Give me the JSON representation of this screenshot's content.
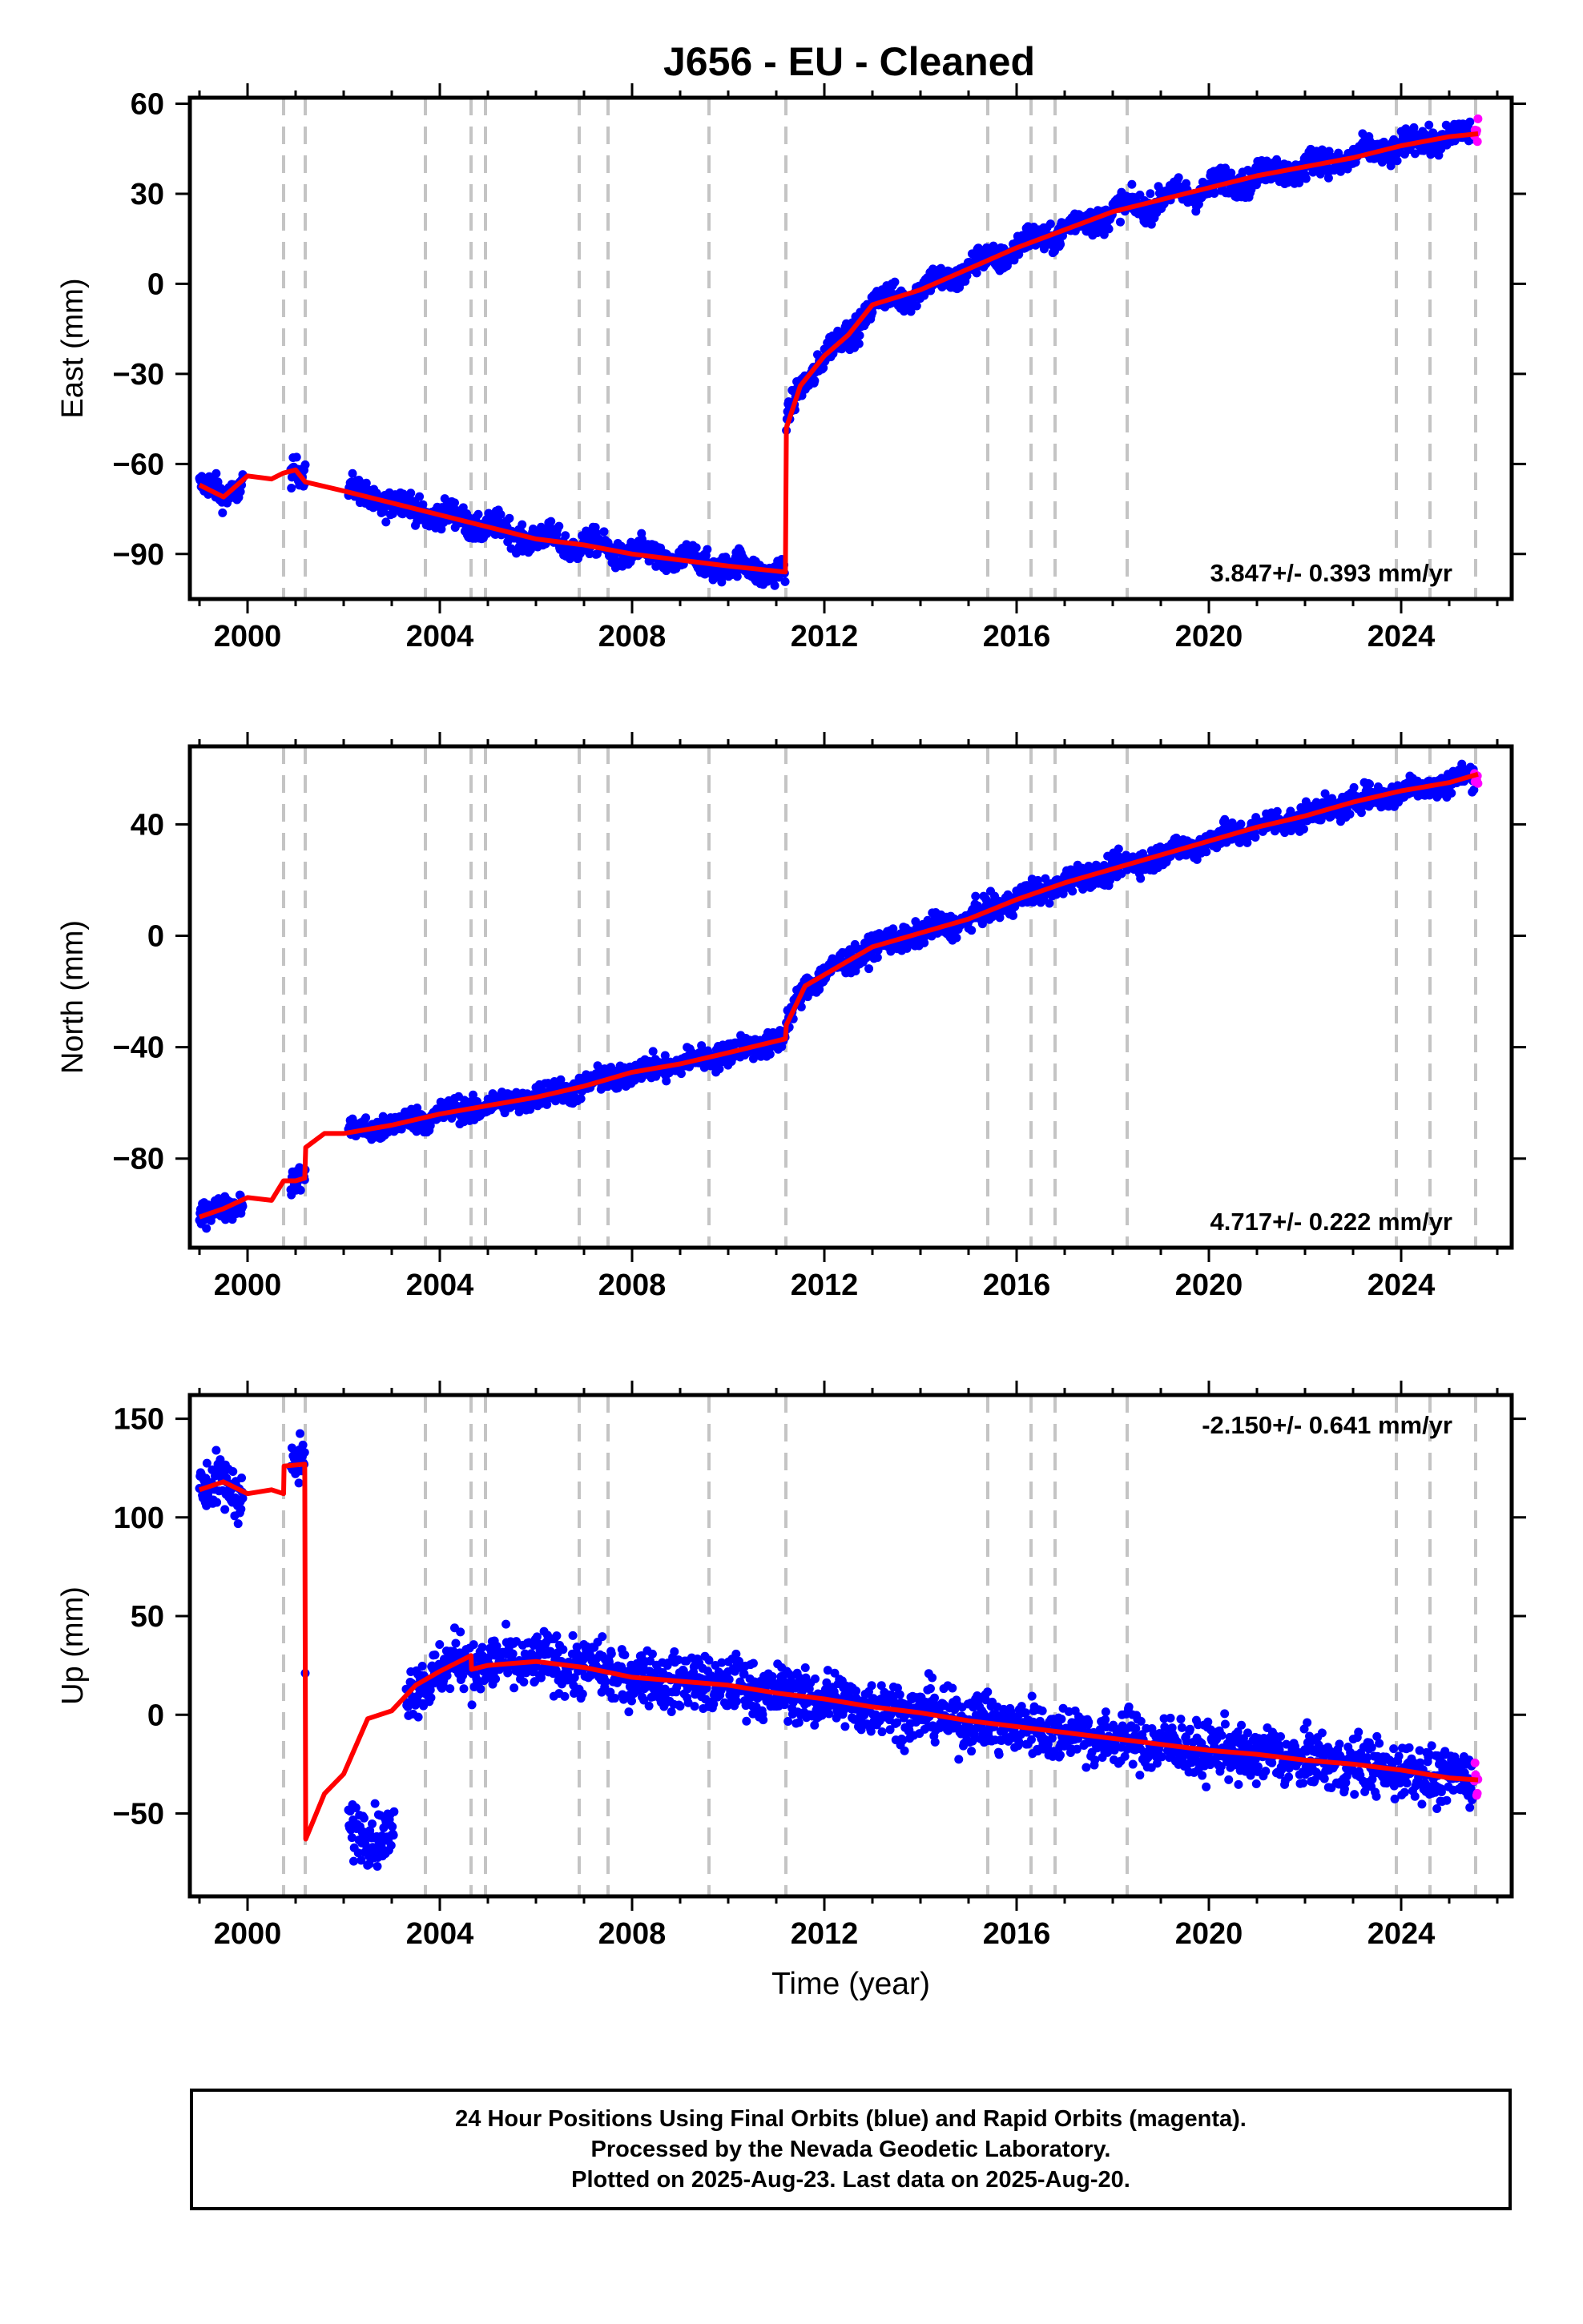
{
  "title": "J656  - EU - Cleaned",
  "chart_data": [
    {
      "type": "scatter",
      "panel": "east",
      "ylabel": "East (mm)",
      "ylim": [
        -105,
        62
      ],
      "yticks": [
        60,
        30,
        0,
        -30,
        -60,
        -90
      ],
      "ytick_labels": [
        "60",
        "30",
        "0",
        "−30",
        "−60",
        "−90"
      ],
      "xlim": [
        1998.8,
        2026.3
      ],
      "xticks": [
        2000,
        2004,
        2008,
        2012,
        2016,
        2020,
        2024
      ],
      "rate_label": "3.847+/- 0.393 mm/yr",
      "rate_position": "bottom-right",
      "offsets": [
        2000.75,
        2001.2,
        2003.7,
        2004.65,
        2004.95,
        2006.9,
        2007.5,
        2009.6,
        2011.2,
        2015.4,
        2016.3,
        2016.8,
        2018.3,
        2023.9,
        2024.6,
        2025.55
      ],
      "data_segments": [
        [
          1999.0,
          1999.9
        ],
        [
          2000.9,
          2001.2
        ],
        [
          2002.1,
          2011.19
        ],
        [
          2011.21,
          2025.6
        ]
      ],
      "model_points": {
        "x": [
          1999.0,
          1999.5,
          2000.0,
          2000.5,
          2000.75,
          2001.0,
          2001.2,
          2002.0,
          2003.0,
          2004.0,
          2005.0,
          2006.0,
          2007.0,
          2008.0,
          2009.0,
          2010.0,
          2011.19,
          2011.21,
          2011.5,
          2012.0,
          2012.5,
          2013.0,
          2014.0,
          2015.0,
          2016.0,
          2017.0,
          2018.0,
          2019.0,
          2020.0,
          2021.0,
          2022.0,
          2023.0,
          2024.0,
          2025.0,
          2025.6
        ],
        "y": [
          -67,
          -71,
          -64,
          -65,
          -63,
          -62,
          -66,
          -69,
          -73,
          -77,
          -81,
          -85,
          -87,
          -90,
          -92,
          -94,
          -96,
          -48,
          -34,
          -24,
          -17,
          -7,
          -2,
          5,
          12,
          18,
          24,
          28,
          32,
          36,
          39,
          42,
          46,
          49,
          50
        ]
      },
      "final_orbits_color": "#0000ff",
      "rapid_orbits_color": "#ff00ff",
      "model_color": "#ff0000"
    },
    {
      "type": "scatter",
      "panel": "north",
      "ylabel": "North (mm)",
      "ylim": [
        -112,
        68
      ],
      "yticks": [
        40,
        0,
        -40,
        -80
      ],
      "ytick_labels": [
        "40",
        "0",
        "−40",
        "−80"
      ],
      "xlim": [
        1998.8,
        2026.3
      ],
      "xticks": [
        2000,
        2004,
        2008,
        2012,
        2016,
        2020,
        2024
      ],
      "rate_label": "4.717+/- 0.222 mm/yr",
      "rate_position": "bottom-right",
      "offsets": [
        2000.75,
        2001.2,
        2003.7,
        2004.65,
        2004.95,
        2006.9,
        2007.5,
        2009.6,
        2011.2,
        2015.4,
        2016.3,
        2016.8,
        2018.3,
        2023.9,
        2024.6,
        2025.55
      ],
      "data_segments": [
        [
          1999.0,
          1999.9
        ],
        [
          2000.9,
          2001.2
        ],
        [
          2002.1,
          2011.19
        ],
        [
          2011.21,
          2025.6
        ]
      ],
      "model_points": {
        "x": [
          1999.0,
          1999.5,
          2000.0,
          2000.5,
          2000.75,
          2001.0,
          2001.19,
          2001.21,
          2001.6,
          2002.0,
          2003.0,
          2004.0,
          2005.0,
          2006.0,
          2007.0,
          2008.0,
          2009.0,
          2010.0,
          2011.19,
          2011.21,
          2011.6,
          2012.0,
          2013.0,
          2014.0,
          2015.0,
          2016.0,
          2017.0,
          2018.0,
          2019.0,
          2020.0,
          2021.0,
          2022.0,
          2023.0,
          2024.0,
          2025.0,
          2025.6
        ],
        "y": [
          -101,
          -98,
          -94,
          -95,
          -88,
          -88,
          -87,
          -76,
          -71,
          -71,
          -68,
          -64,
          -61,
          -58,
          -54,
          -49,
          -46,
          -42,
          -37,
          -32,
          -18,
          -14,
          -4,
          1,
          6,
          13,
          19,
          24,
          29,
          34,
          39,
          43,
          48,
          52,
          55,
          58
        ]
      },
      "final_orbits_color": "#0000ff",
      "rapid_orbits_color": "#ff00ff",
      "model_color": "#ff0000"
    },
    {
      "type": "scatter",
      "panel": "up",
      "ylabel": "Up (mm)",
      "xlabel": "Time (year)",
      "ylim": [
        -92,
        162
      ],
      "yticks": [
        150,
        100,
        50,
        0,
        -50
      ],
      "ytick_labels": [
        "150",
        "100",
        "50",
        "0",
        "−50"
      ],
      "xlim": [
        1998.8,
        2026.3
      ],
      "xticks": [
        2000,
        2004,
        2008,
        2012,
        2016,
        2020,
        2024
      ],
      "rate_label": "-2.150+/- 0.641 mm/yr",
      "rate_position": "top-right",
      "offsets": [
        2000.75,
        2001.2,
        2003.7,
        2004.65,
        2004.95,
        2006.9,
        2007.5,
        2009.6,
        2011.2,
        2015.4,
        2016.3,
        2016.8,
        2018.3,
        2023.9,
        2024.6,
        2025.55
      ],
      "data_segments": [
        [
          1999.0,
          1999.9
        ],
        [
          2000.9,
          2001.2
        ],
        [
          2002.1,
          2003.05
        ],
        [
          2003.3,
          2025.6
        ]
      ],
      "model_points": {
        "x": [
          1999.0,
          1999.5,
          2000.0,
          2000.5,
          2000.75,
          2000.76,
          2001.19,
          2001.21,
          2001.6,
          2002.0,
          2002.5,
          2003.0,
          2003.5,
          2004.0,
          2004.65,
          2004.66,
          2005.0,
          2006.0,
          2007.0,
          2008.0,
          2009.0,
          2010.0,
          2011.0,
          2012.0,
          2013.0,
          2014.0,
          2015.0,
          2016.0,
          2017.0,
          2018.0,
          2019.0,
          2020.0,
          2021.0,
          2022.0,
          2023.0,
          2024.0,
          2025.0,
          2025.6
        ],
        "y": [
          114,
          118,
          112,
          114,
          112,
          126,
          127,
          -63,
          -40,
          -30,
          -2,
          2,
          15,
          22,
          30,
          23,
          25,
          27,
          24,
          19,
          17,
          15,
          11,
          8,
          4,
          1,
          -3,
          -6,
          -9,
          -12,
          -15,
          -18,
          -20,
          -23,
          -25,
          -28,
          -32,
          -33
        ]
      },
      "final_orbits_color": "#0000ff",
      "rapid_orbits_color": "#ff00ff",
      "model_color": "#ff0000"
    }
  ],
  "footer": {
    "line1": "24 Hour Positions Using Final Orbits (blue) and Rapid Orbits (magenta).",
    "line2": "Processed by the Nevada Geodetic Laboratory.",
    "line3": "Plotted on 2025-Aug-23. Last data on 2025-Aug-20."
  }
}
